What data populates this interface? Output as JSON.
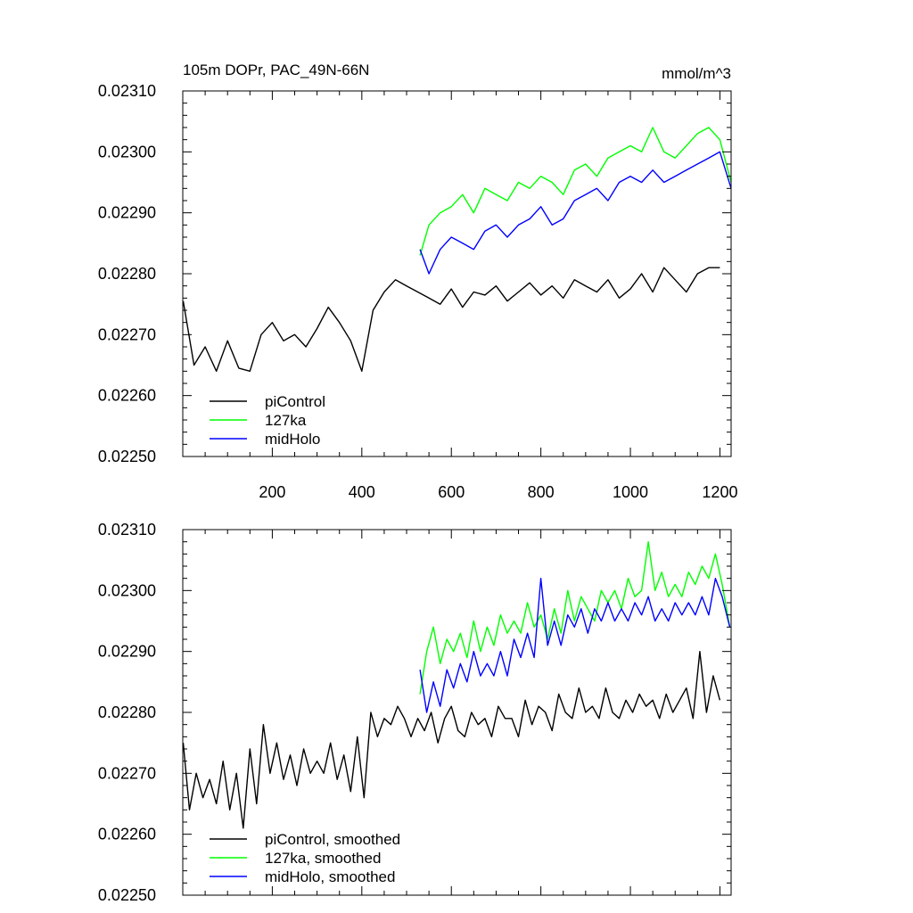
{
  "chart_data": [
    {
      "type": "line",
      "title": "105m DOPr, PAC_49N-66N",
      "units": "mmol/m^3",
      "xlabel": "",
      "ylabel": "",
      "xlim": [
        0,
        1225
      ],
      "ylim": [
        0.0225,
        0.0231
      ],
      "xticks": [
        200,
        400,
        600,
        800,
        1000,
        1200
      ],
      "xtick_labels": [
        "200",
        "400",
        "600",
        "800",
        "1000",
        "1200"
      ],
      "show_xtick_labels": true,
      "yticks": [
        0.0225,
        0.0226,
        0.0227,
        0.0228,
        0.0229,
        0.023,
        0.0231
      ],
      "ytick_labels": [
        "0.02250",
        "0.02260",
        "0.02270",
        "0.02280",
        "0.02290",
        "0.02300",
        "0.02310"
      ],
      "legend_position": "bottom-left",
      "series": [
        {
          "name": "piControl",
          "color": "#000000",
          "x": [
            1,
            25,
            50,
            75,
            100,
            125,
            150,
            175,
            200,
            225,
            250,
            275,
            300,
            325,
            350,
            375,
            400,
            425,
            450,
            475,
            500,
            525,
            550,
            575,
            600,
            625,
            650,
            675,
            700,
            725,
            750,
            775,
            800,
            825,
            850,
            875,
            900,
            925,
            950,
            975,
            1000,
            1025,
            1050,
            1075,
            1100,
            1125,
            1150,
            1175,
            1200
          ],
          "values": [
            0.022755,
            0.02265,
            0.02268,
            0.02264,
            0.02269,
            0.022645,
            0.02264,
            0.0227,
            0.02272,
            0.02269,
            0.0227,
            0.02268,
            0.02271,
            0.022745,
            0.02272,
            0.02269,
            0.02264,
            0.02274,
            0.02277,
            0.02279,
            0.02278,
            0.02277,
            0.02276,
            0.02275,
            0.022775,
            0.022745,
            0.02277,
            0.022765,
            0.02278,
            0.022755,
            0.02277,
            0.022785,
            0.022765,
            0.02278,
            0.02276,
            0.02279,
            0.02278,
            0.02277,
            0.02279,
            0.02276,
            0.022775,
            0.0228,
            0.02277,
            0.02281,
            0.02279,
            0.02277,
            0.0228,
            0.02281,
            0.02281
          ]
        },
        {
          "name": "127ka",
          "color": "#00ff00",
          "x": [
            530,
            550,
            575,
            600,
            625,
            650,
            675,
            700,
            725,
            750,
            775,
            800,
            825,
            850,
            875,
            900,
            925,
            950,
            975,
            1000,
            1025,
            1050,
            1075,
            1100,
            1125,
            1150,
            1175,
            1200,
            1225
          ],
          "values": [
            0.02283,
            0.02288,
            0.0229,
            0.02291,
            0.02293,
            0.0229,
            0.02294,
            0.02293,
            0.02292,
            0.02295,
            0.02294,
            0.02296,
            0.02295,
            0.02293,
            0.02297,
            0.02298,
            0.02296,
            0.02299,
            0.023,
            0.02301,
            0.023,
            0.02304,
            0.023,
            0.02299,
            0.02301,
            0.02303,
            0.02304,
            0.02302,
            0.02295
          ]
        },
        {
          "name": "midHolo",
          "color": "#0000ff",
          "x": [
            530,
            550,
            575,
            600,
            625,
            650,
            675,
            700,
            725,
            750,
            775,
            800,
            825,
            850,
            875,
            900,
            925,
            950,
            975,
            1000,
            1025,
            1050,
            1075,
            1100,
            1125,
            1150,
            1175,
            1200,
            1225
          ],
          "values": [
            0.02284,
            0.0228,
            0.02284,
            0.02286,
            0.02285,
            0.02284,
            0.02287,
            0.02288,
            0.02286,
            0.02288,
            0.02289,
            0.02291,
            0.02288,
            0.02289,
            0.02292,
            0.02293,
            0.02294,
            0.02292,
            0.02295,
            0.02296,
            0.02295,
            0.02297,
            0.02295,
            0.02296,
            0.02297,
            0.02298,
            0.02299,
            0.023,
            0.02294
          ]
        }
      ]
    },
    {
      "type": "line",
      "title": "",
      "xlabel": "",
      "ylabel": "",
      "xlim": [
        0,
        1225
      ],
      "ylim": [
        0.0225,
        0.0231
      ],
      "xticks": [
        200,
        400,
        600,
        800,
        1000,
        1200
      ],
      "show_xtick_labels": false,
      "yticks": [
        0.0225,
        0.0226,
        0.0227,
        0.0228,
        0.0229,
        0.023,
        0.0231
      ],
      "ytick_labels": [
        "0.02250",
        "0.02260",
        "0.02270",
        "0.02280",
        "0.02290",
        "0.02300",
        "0.02310"
      ],
      "legend_position": "bottom-left",
      "series": [
        {
          "name": "piControl, smoothed",
          "color": "#000000",
          "x": [
            1,
            15,
            30,
            45,
            60,
            75,
            90,
            105,
            120,
            135,
            150,
            165,
            180,
            195,
            210,
            225,
            240,
            255,
            270,
            285,
            300,
            315,
            330,
            345,
            360,
            375,
            390,
            405,
            420,
            435,
            450,
            465,
            480,
            495,
            510,
            525,
            540,
            555,
            570,
            585,
            600,
            615,
            630,
            645,
            660,
            675,
            690,
            705,
            720,
            735,
            750,
            765,
            780,
            795,
            810,
            825,
            840,
            855,
            870,
            885,
            900,
            915,
            930,
            945,
            960,
            975,
            990,
            1005,
            1020,
            1035,
            1050,
            1065,
            1080,
            1095,
            1110,
            1125,
            1140,
            1155,
            1170,
            1185,
            1200
          ],
          "values": [
            0.02275,
            0.02264,
            0.0227,
            0.02266,
            0.02269,
            0.02265,
            0.02272,
            0.02264,
            0.0227,
            0.02261,
            0.02274,
            0.02265,
            0.02278,
            0.0227,
            0.02275,
            0.02269,
            0.02273,
            0.02268,
            0.02274,
            0.0227,
            0.02272,
            0.0227,
            0.02275,
            0.02269,
            0.02273,
            0.02267,
            0.02276,
            0.02266,
            0.0228,
            0.02276,
            0.02279,
            0.02278,
            0.02281,
            0.02279,
            0.02276,
            0.02279,
            0.02277,
            0.0228,
            0.02275,
            0.02279,
            0.02281,
            0.02277,
            0.02276,
            0.0228,
            0.02278,
            0.02279,
            0.02276,
            0.02281,
            0.02279,
            0.02279,
            0.02276,
            0.02282,
            0.02278,
            0.02281,
            0.0228,
            0.02277,
            0.02283,
            0.0228,
            0.02279,
            0.02284,
            0.0228,
            0.02281,
            0.02279,
            0.02284,
            0.0228,
            0.02279,
            0.02282,
            0.0228,
            0.02283,
            0.02281,
            0.02282,
            0.02279,
            0.02283,
            0.0228,
            0.02282,
            0.02284,
            0.02279,
            0.0229,
            0.0228,
            0.02286,
            0.02282
          ]
        },
        {
          "name": "127ka, smoothed",
          "color": "#00ff00",
          "x": [
            530,
            545,
            560,
            575,
            590,
            605,
            620,
            635,
            650,
            665,
            680,
            695,
            710,
            725,
            740,
            755,
            770,
            785,
            800,
            815,
            830,
            845,
            860,
            875,
            890,
            905,
            920,
            935,
            950,
            965,
            980,
            995,
            1010,
            1025,
            1040,
            1055,
            1070,
            1085,
            1100,
            1115,
            1130,
            1145,
            1160,
            1175,
            1190,
            1205,
            1222
          ],
          "values": [
            0.02283,
            0.0229,
            0.02294,
            0.02288,
            0.02292,
            0.0229,
            0.02293,
            0.02289,
            0.02295,
            0.0229,
            0.02294,
            0.02291,
            0.02296,
            0.02293,
            0.02295,
            0.02293,
            0.02298,
            0.02294,
            0.02296,
            0.02292,
            0.02297,
            0.02293,
            0.023,
            0.02295,
            0.02299,
            0.02297,
            0.02295,
            0.023,
            0.02298,
            0.023,
            0.02297,
            0.02302,
            0.02299,
            0.023,
            0.02308,
            0.023,
            0.02303,
            0.02299,
            0.02301,
            0.02299,
            0.02303,
            0.02301,
            0.02304,
            0.02302,
            0.02306,
            0.02301,
            0.02294
          ]
        },
        {
          "name": "midHolo, smoothed",
          "color": "#0000ff",
          "x": [
            530,
            545,
            560,
            575,
            590,
            605,
            620,
            635,
            650,
            665,
            680,
            695,
            710,
            725,
            740,
            755,
            770,
            785,
            800,
            815,
            830,
            845,
            860,
            875,
            890,
            905,
            920,
            935,
            950,
            965,
            980,
            995,
            1010,
            1025,
            1040,
            1055,
            1070,
            1085,
            1100,
            1115,
            1130,
            1145,
            1160,
            1175,
            1190,
            1205,
            1222
          ],
          "values": [
            0.02287,
            0.0228,
            0.02285,
            0.02281,
            0.02287,
            0.02284,
            0.02288,
            0.02285,
            0.0229,
            0.02286,
            0.02288,
            0.02286,
            0.0229,
            0.02286,
            0.02292,
            0.02289,
            0.02293,
            0.02289,
            0.02302,
            0.02291,
            0.02295,
            0.02291,
            0.02296,
            0.02294,
            0.02297,
            0.02293,
            0.02297,
            0.02295,
            0.02298,
            0.02295,
            0.02297,
            0.02295,
            0.02298,
            0.02296,
            0.02299,
            0.02295,
            0.02297,
            0.02295,
            0.02298,
            0.02296,
            0.02298,
            0.02296,
            0.02299,
            0.02296,
            0.02302,
            0.02299,
            0.02294
          ]
        }
      ]
    }
  ]
}
